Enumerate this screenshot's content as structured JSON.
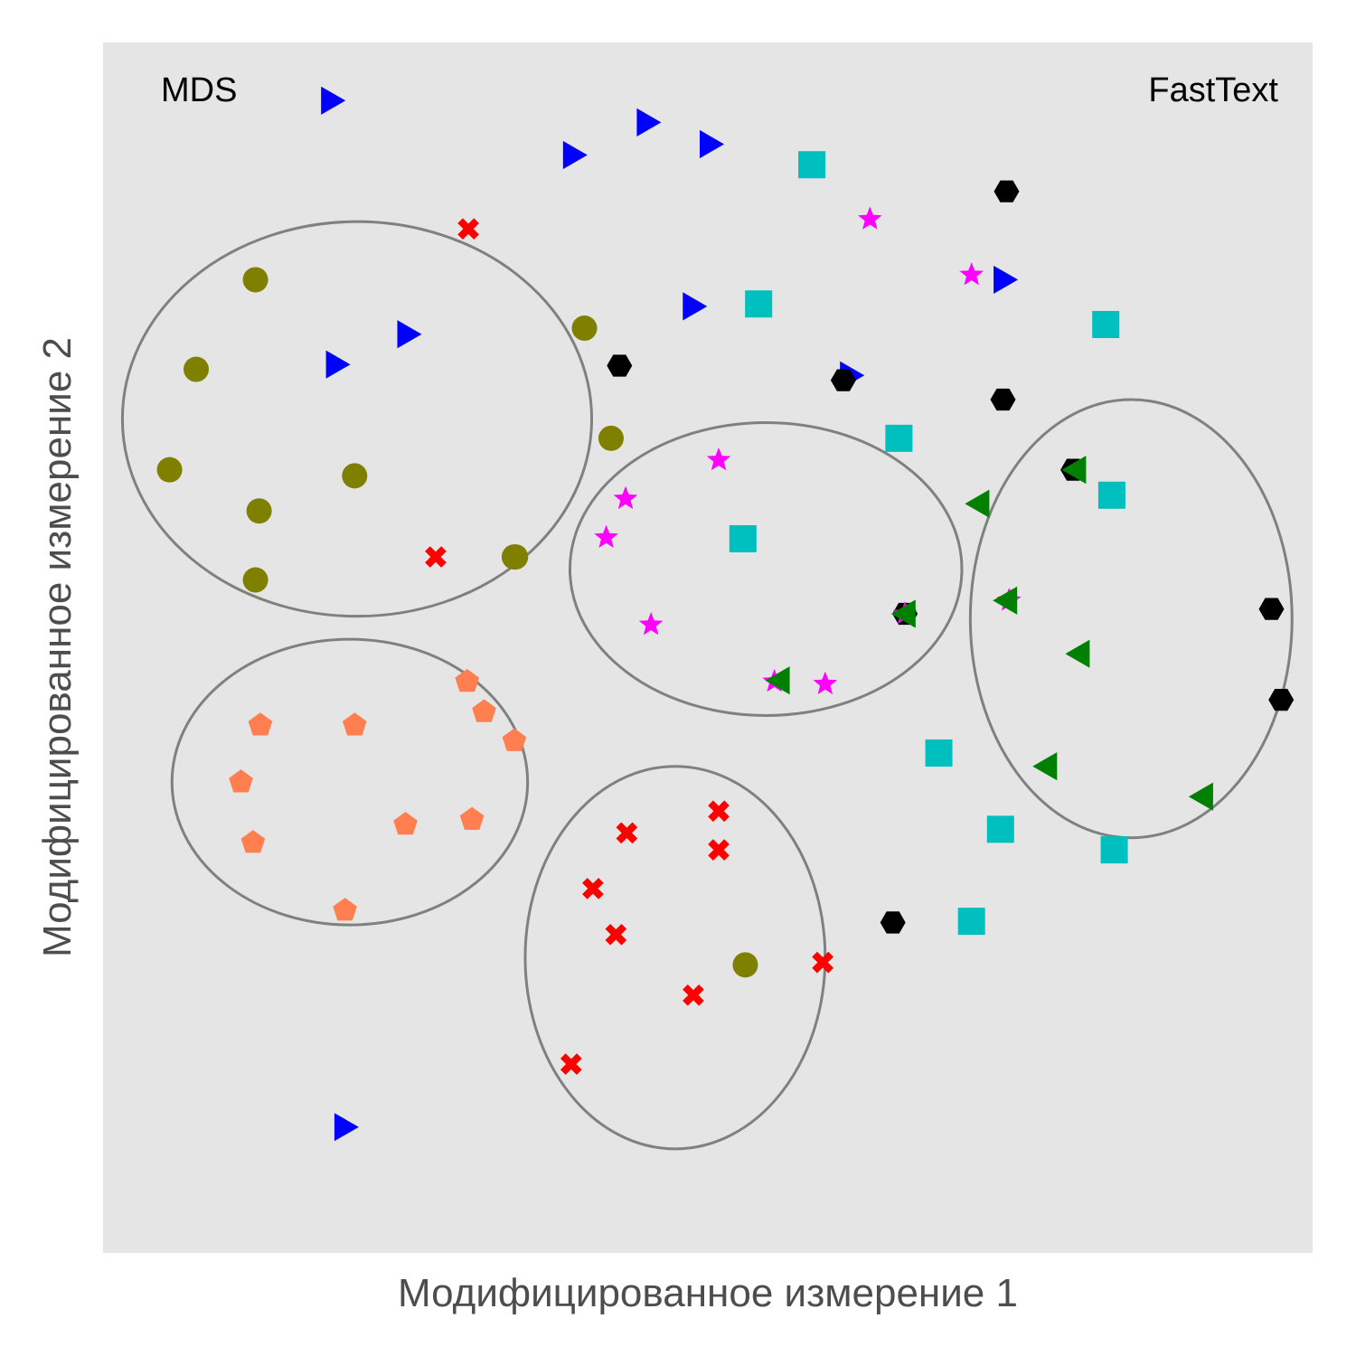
{
  "chart_data": {
    "type": "scatter",
    "title": "",
    "method_label": "MDS",
    "model_label": "FastText",
    "xlabel": "Модифицированное измерение 1",
    "ylabel": "Модифицированное измерение 2",
    "xlim": [
      0,
      100
    ],
    "ylim": [
      0,
      100
    ],
    "grid": false,
    "background": "#e5e5e5",
    "ellipse_color": "#808080",
    "series": [
      {
        "marker": "circle",
        "color": "#808000",
        "points": [
          [
            12.6,
            80.4
          ],
          [
            7.7,
            73.0
          ],
          [
            5.5,
            64.7
          ],
          [
            12.9,
            61.3
          ],
          [
            12.6,
            55.6
          ],
          [
            20.8,
            64.2
          ],
          [
            34.1,
            57.5
          ],
          [
            34.0,
            57.5
          ],
          [
            39.8,
            76.4
          ],
          [
            42.0,
            67.3
          ],
          [
            53.1,
            23.8
          ]
        ]
      },
      {
        "marker": "triangle-right",
        "color": "#0000ff",
        "points": [
          [
            18.7,
            95.2
          ],
          [
            38.7,
            90.7
          ],
          [
            44.8,
            93.4
          ],
          [
            50.0,
            91.6
          ],
          [
            19.1,
            73.4
          ],
          [
            25.0,
            75.9
          ],
          [
            48.6,
            78.2
          ],
          [
            61.6,
            72.5
          ],
          [
            74.3,
            80.4
          ],
          [
            19.8,
            10.4
          ]
        ]
      },
      {
        "marker": "x",
        "color": "#ff0000",
        "points": [
          [
            30.2,
            84.6
          ],
          [
            27.5,
            57.5
          ],
          [
            43.3,
            34.7
          ],
          [
            50.9,
            36.5
          ],
          [
            50.9,
            33.3
          ],
          [
            40.5,
            30.1
          ],
          [
            42.4,
            26.3
          ],
          [
            48.8,
            21.3
          ],
          [
            59.5,
            24.0
          ],
          [
            38.7,
            15.6
          ]
        ]
      },
      {
        "marker": "square",
        "color": "#00bfbf",
        "points": [
          [
            58.6,
            89.9
          ],
          [
            54.2,
            78.4
          ],
          [
            82.9,
            76.7
          ],
          [
            65.8,
            67.3
          ],
          [
            83.4,
            62.6
          ],
          [
            52.9,
            59.0
          ],
          [
            69.1,
            41.3
          ],
          [
            74.2,
            35.0
          ],
          [
            83.6,
            33.3
          ],
          [
            71.8,
            27.4
          ]
        ]
      },
      {
        "marker": "hexagon",
        "color": "#000000",
        "points": [
          [
            74.7,
            87.7
          ],
          [
            42.7,
            73.3
          ],
          [
            61.2,
            72.1
          ],
          [
            74.4,
            70.5
          ],
          [
            80.2,
            64.7
          ],
          [
            66.3,
            52.8
          ],
          [
            96.6,
            53.2
          ],
          [
            97.4,
            45.7
          ],
          [
            65.3,
            27.3
          ]
        ]
      },
      {
        "marker": "star",
        "color": "#ff00ff",
        "points": [
          [
            63.4,
            85.4
          ],
          [
            71.8,
            80.8
          ],
          [
            50.9,
            65.5
          ],
          [
            43.2,
            62.3
          ],
          [
            41.6,
            59.1
          ],
          [
            45.3,
            51.9
          ],
          [
            55.5,
            47.2
          ],
          [
            59.7,
            47.0
          ],
          [
            66.3,
            52.8
          ],
          [
            74.9,
            53.9
          ]
        ]
      },
      {
        "marker": "triangle-left",
        "color": "#008000",
        "points": [
          [
            80.6,
            64.7
          ],
          [
            72.6,
            61.9
          ],
          [
            74.9,
            53.9
          ],
          [
            66.5,
            52.8
          ],
          [
            56.1,
            47.3
          ],
          [
            80.9,
            49.5
          ],
          [
            78.2,
            40.2
          ],
          [
            91.1,
            37.7
          ]
        ]
      },
      {
        "marker": "pentagon",
        "color": "#ff7f50",
        "points": [
          [
            30.1,
            47.2
          ],
          [
            31.5,
            44.7
          ],
          [
            34.0,
            42.3
          ],
          [
            13.0,
            43.6
          ],
          [
            20.8,
            43.6
          ],
          [
            11.4,
            38.9
          ],
          [
            25.0,
            35.4
          ],
          [
            30.5,
            35.8
          ],
          [
            12.4,
            33.9
          ],
          [
            20.0,
            28.3
          ]
        ]
      }
    ],
    "ellipses": [
      {
        "cx": 21.0,
        "cy": 68.9,
        "rx": 19.4,
        "ry": 16.3
      },
      {
        "cx": 54.8,
        "cy": 56.5,
        "rx": 16.2,
        "ry": 12.1
      },
      {
        "cx": 85.0,
        "cy": 52.4,
        "rx": 13.3,
        "ry": 18.1
      },
      {
        "cx": 20.4,
        "cy": 38.9,
        "rx": 14.7,
        "ry": 11.8
      },
      {
        "cx": 47.3,
        "cy": 24.4,
        "rx": 12.4,
        "ry": 15.8
      }
    ]
  }
}
